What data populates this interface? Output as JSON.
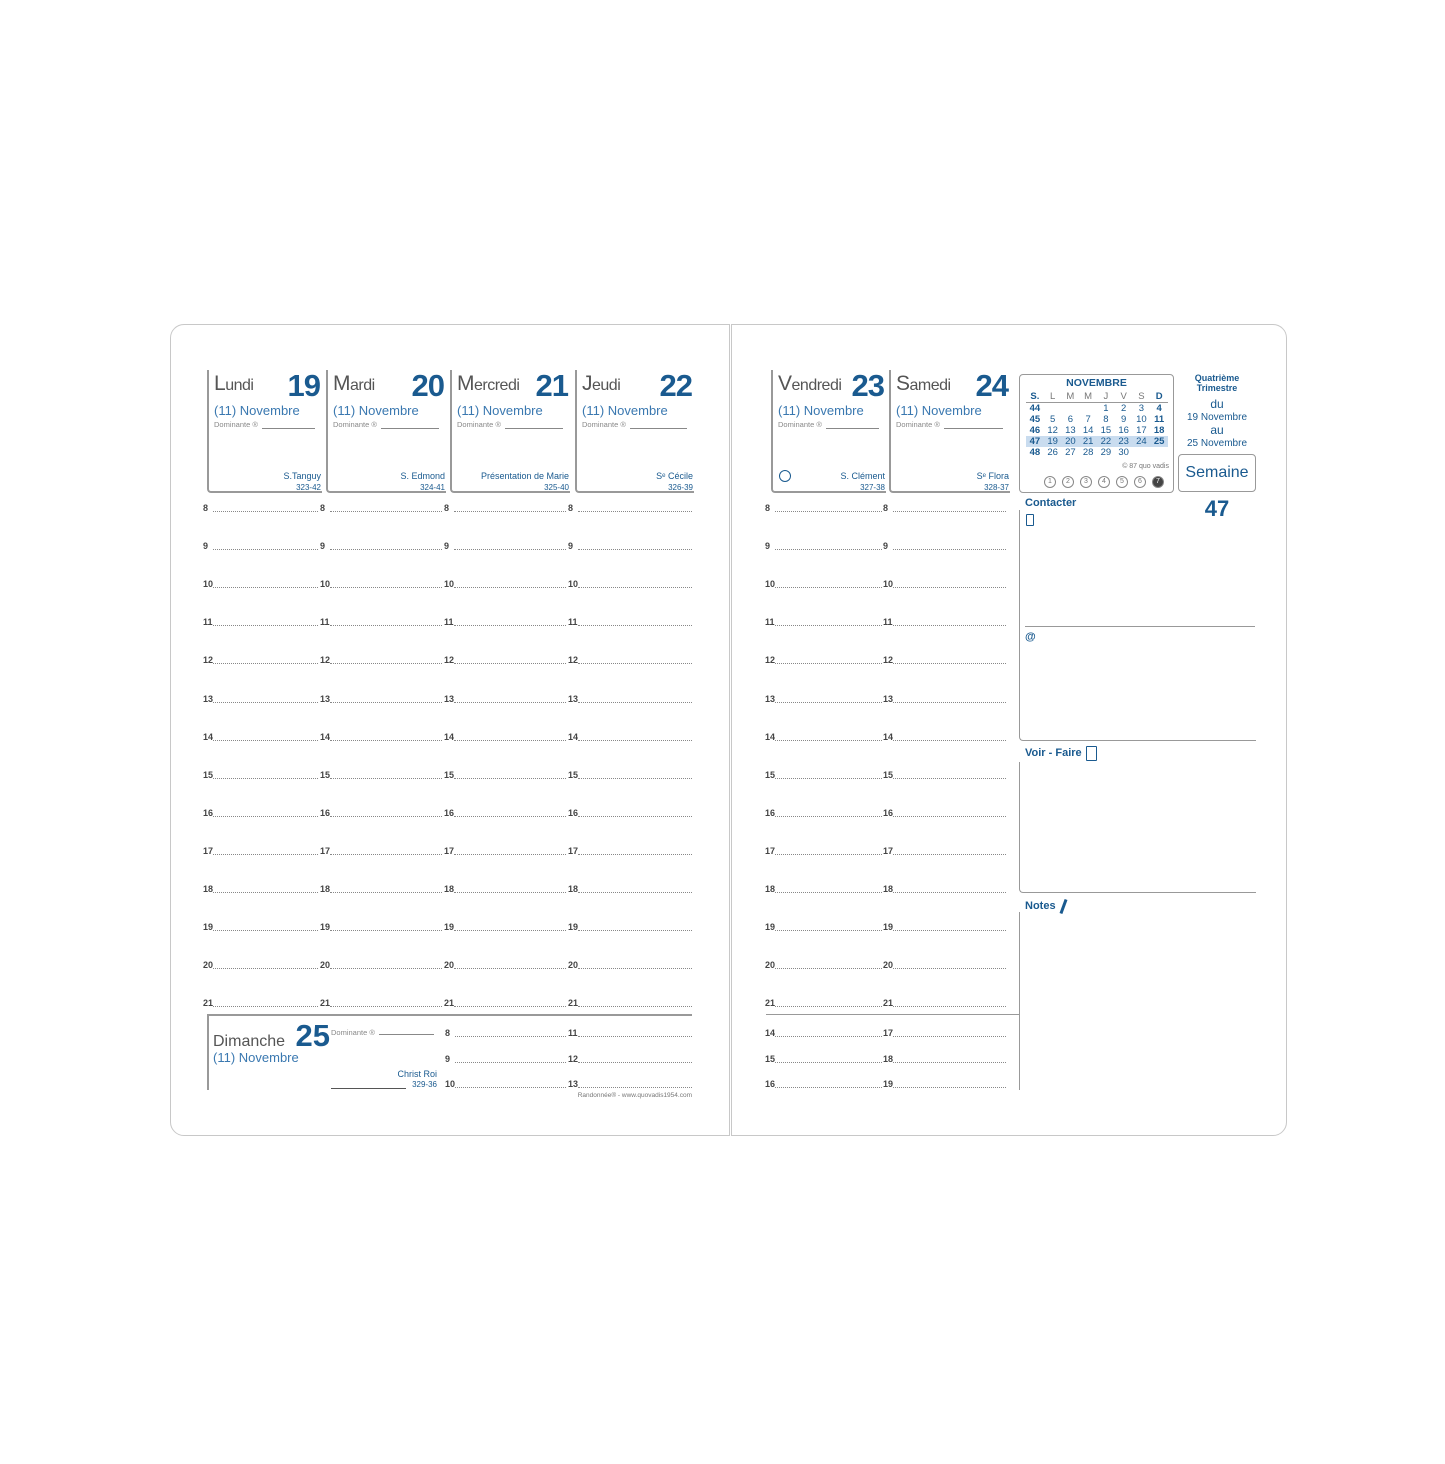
{
  "left_days": [
    {
      "name": "Lundi",
      "num": "19",
      "month": "(11) Novembre",
      "dominante": "Dominante ®",
      "saint": "S.Tanguy",
      "code": "323-42"
    },
    {
      "name": "Mardi",
      "num": "20",
      "month": "(11) Novembre",
      "dominante": "Dominante ®",
      "saint": "S. Edmond",
      "code": "324-41"
    },
    {
      "name": "Mercredi",
      "num": "21",
      "month": "(11) Novembre",
      "dominante": "Dominante ®",
      "saint": "Présentation de Marie",
      "code": "325-40"
    },
    {
      "name": "Jeudi",
      "num": "22",
      "month": "(11) Novembre",
      "dominante": "Dominante ®",
      "saint": "Sᵉ Cécile",
      "code": "326-39"
    }
  ],
  "right_days": [
    {
      "name": "Vendredi",
      "num": "23",
      "month": "(11) Novembre",
      "dominante": "Dominante ®",
      "saint": "S. Clément",
      "code": "327-38"
    },
    {
      "name": "Samedi",
      "num": "24",
      "month": "(11) Novembre",
      "dominante": "Dominante ®",
      "saint": "Sᵉ Flora",
      "code": "328-37"
    }
  ],
  "hours": [
    "8",
    "9",
    "10",
    "11",
    "12",
    "13",
    "14",
    "15",
    "16",
    "17",
    "18",
    "19",
    "20",
    "21"
  ],
  "sunday": {
    "name": "Dimanche",
    "num": "25",
    "month": "(11) Novembre",
    "dominante": "Dominante ®",
    "saint": "Christ Roi",
    "code": "329-36",
    "hours_a": [
      "8",
      "9",
      "10"
    ],
    "hours_b": [
      "11",
      "12",
      "13"
    ]
  },
  "saturday_extra": {
    "hours_a": [
      "14",
      "15",
      "16"
    ],
    "hours_b": [
      "17",
      "18",
      "19"
    ]
  },
  "footer": "Randonnée® - www.quovadis1954.com",
  "mini_calendar": {
    "title": "NOVEMBRE",
    "headers": [
      "S.",
      "L",
      "M",
      "M",
      "J",
      "V",
      "S",
      "D"
    ],
    "rows": [
      [
        "44",
        "",
        "",
        "",
        "1",
        "2",
        "3",
        "4"
      ],
      [
        "45",
        "5",
        "6",
        "7",
        "8",
        "9",
        "10",
        "11"
      ],
      [
        "46",
        "12",
        "13",
        "14",
        "15",
        "16",
        "17",
        "18"
      ],
      [
        "47",
        "19",
        "20",
        "21",
        "22",
        "23",
        "24",
        "25"
      ],
      [
        "48",
        "26",
        "27",
        "28",
        "29",
        "30",
        "",
        ""
      ]
    ],
    "highlight_week": "47",
    "copyright": "© 87 quo vadis",
    "weekdays": [
      "1",
      "2",
      "3",
      "4",
      "5",
      "6",
      "7"
    ],
    "current_weekday": "7"
  },
  "week_info": {
    "quarter": "Quatrième Trimestre",
    "du": "du",
    "from": "19 Novembre",
    "au": "au",
    "to": "25 Novembre",
    "semaine_label": "Semaine",
    "semaine_num": "47"
  },
  "sections": {
    "contact": "Contacter",
    "email": "@",
    "todo": "Voir - Faire",
    "notes": "Notes"
  },
  "colors": {
    "accent": "#1a5a8f",
    "highlight": "#c9dcef"
  }
}
